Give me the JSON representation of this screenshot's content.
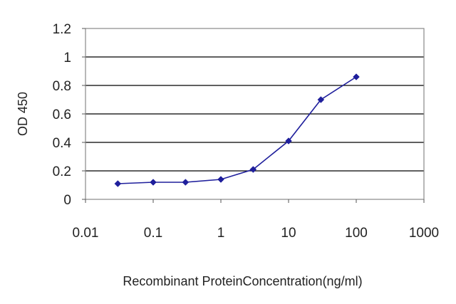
{
  "chart_data": {
    "type": "line",
    "title": "",
    "xlabel": "Recombinant ProteinConcentration(ng/ml)",
    "ylabel": "OD 450",
    "x_scale": "log",
    "xlim": [
      0.01,
      1000
    ],
    "ylim": [
      0,
      1.2
    ],
    "x_ticks": [
      "0.01",
      "0.1",
      "1",
      "10",
      "100",
      "1000"
    ],
    "y_ticks": [
      "0",
      "0.2",
      "0.4",
      "0.6",
      "0.8",
      "1",
      "1.2"
    ],
    "grid": "horizontal",
    "legend": "none",
    "series": [
      {
        "color": "#1f1f9c",
        "marker": "diamond",
        "x": [
          0.03,
          0.1,
          0.3,
          1,
          3,
          10,
          30,
          100
        ],
        "y": [
          0.11,
          0.12,
          0.12,
          0.14,
          0.21,
          0.41,
          0.7,
          0.86
        ]
      }
    ],
    "colors": {
      "plot_background": "#ffffff",
      "grid": "#000000",
      "frame": "#888888"
    }
  }
}
